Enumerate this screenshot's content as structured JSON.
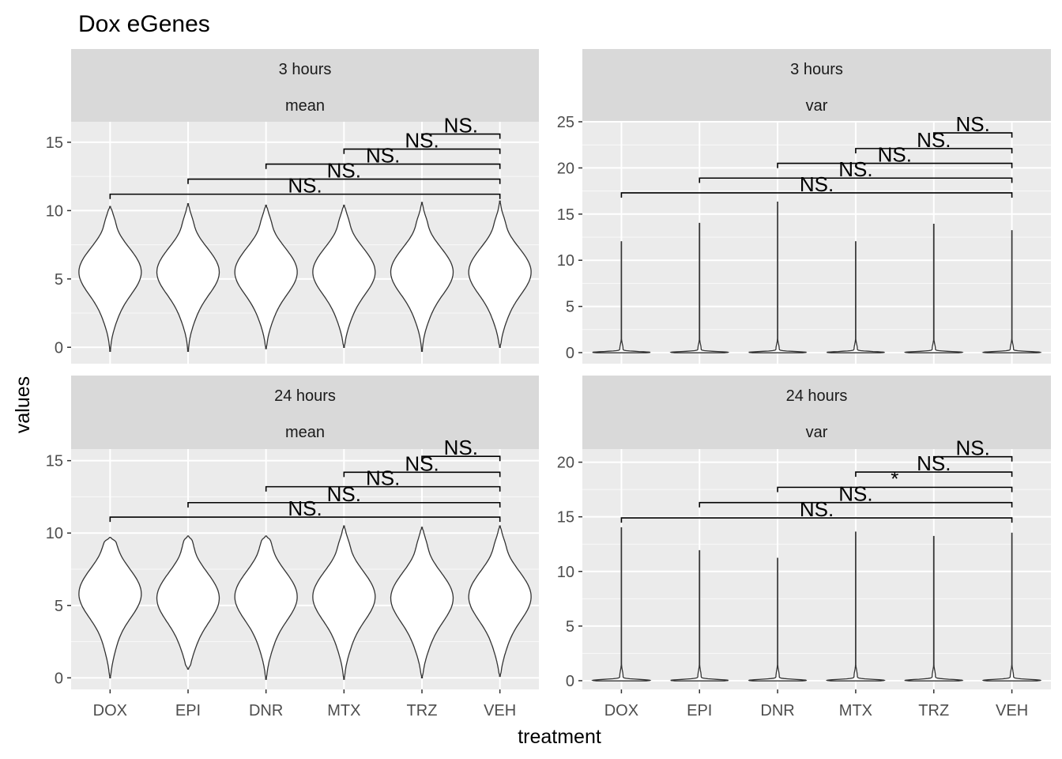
{
  "chart_data": {
    "type": "violin",
    "title": "Dox eGenes",
    "xlabel": "treatment",
    "ylabel": "values",
    "categories": [
      "DOX",
      "EPI",
      "DNR",
      "MTX",
      "TRZ",
      "VEH"
    ],
    "panels": [
      {
        "time": "3 hours",
        "stat": "mean",
        "ylim": [
          -1.2,
          16.5
        ],
        "yticks": [
          0,
          5,
          10,
          15
        ],
        "violins": [
          {
            "category": "DOX",
            "min": -0.3,
            "max": 10.3,
            "mode": 5.5
          },
          {
            "category": "EPI",
            "min": -0.3,
            "max": 10.5,
            "mode": 5.5
          },
          {
            "category": "DNR",
            "min": -0.1,
            "max": 10.4,
            "mode": 5.5
          },
          {
            "category": "MTX",
            "min": 0.0,
            "max": 10.4,
            "mode": 5.5
          },
          {
            "category": "TRZ",
            "min": -0.3,
            "max": 10.6,
            "mode": 5.5
          },
          {
            "category": "VEH",
            "min": 0.0,
            "max": 10.7,
            "mode": 5.5
          }
        ],
        "comparisons": [
          {
            "from": "DOX",
            "to": "VEH",
            "y": 11.2,
            "label": "NS."
          },
          {
            "from": "EPI",
            "to": "VEH",
            "y": 12.3,
            "label": "NS."
          },
          {
            "from": "DNR",
            "to": "VEH",
            "y": 13.4,
            "label": "NS."
          },
          {
            "from": "MTX",
            "to": "VEH",
            "y": 14.5,
            "label": "NS."
          },
          {
            "from": "TRZ",
            "to": "VEH",
            "y": 15.6,
            "label": "NS."
          }
        ]
      },
      {
        "time": "3 hours",
        "stat": "var",
        "ylim": [
          -1.2,
          25.0
        ],
        "yticks": [
          0,
          5,
          10,
          15,
          20,
          25
        ],
        "violins": [
          {
            "category": "DOX",
            "max": 12.0
          },
          {
            "category": "EPI",
            "max": 14.0
          },
          {
            "category": "DNR",
            "max": 16.3
          },
          {
            "category": "MTX",
            "max": 12.0
          },
          {
            "category": "TRZ",
            "max": 13.9
          },
          {
            "category": "VEH",
            "max": 13.2
          }
        ],
        "comparisons": [
          {
            "from": "DOX",
            "to": "VEH",
            "y": 17.3,
            "label": "NS."
          },
          {
            "from": "EPI",
            "to": "VEH",
            "y": 18.9,
            "label": "NS."
          },
          {
            "from": "DNR",
            "to": "VEH",
            "y": 20.5,
            "label": "NS."
          },
          {
            "from": "MTX",
            "to": "VEH",
            "y": 22.1,
            "label": "NS."
          },
          {
            "from": "TRZ",
            "to": "VEH",
            "y": 23.8,
            "label": "NS."
          }
        ]
      },
      {
        "time": "24 hours",
        "stat": "mean",
        "ylim": [
          -0.8,
          15.8
        ],
        "yticks": [
          0,
          5,
          10,
          15
        ],
        "violins": [
          {
            "category": "DOX",
            "min": 0.0,
            "max": 9.7,
            "mode": 5.8
          },
          {
            "category": "EPI",
            "min": 0.6,
            "max": 9.8,
            "mode": 5.5
          },
          {
            "category": "DNR",
            "min": -0.1,
            "max": 9.8,
            "mode": 5.6
          },
          {
            "category": "MTX",
            "min": -0.1,
            "max": 10.5,
            "mode": 5.6
          },
          {
            "category": "TRZ",
            "min": 0.0,
            "max": 10.4,
            "mode": 5.5
          },
          {
            "category": "VEH",
            "min": 0.1,
            "max": 10.5,
            "mode": 5.6
          }
        ],
        "comparisons": [
          {
            "from": "DOX",
            "to": "VEH",
            "y": 11.1,
            "label": "NS."
          },
          {
            "from": "EPI",
            "to": "VEH",
            "y": 12.1,
            "label": "NS."
          },
          {
            "from": "DNR",
            "to": "VEH",
            "y": 13.2,
            "label": "NS."
          },
          {
            "from": "MTX",
            "to": "VEH",
            "y": 14.2,
            "label": "NS."
          },
          {
            "from": "TRZ",
            "to": "VEH",
            "y": 15.3,
            "label": "NS."
          }
        ]
      },
      {
        "time": "24 hours",
        "stat": "var",
        "ylim": [
          -0.8,
          21.2
        ],
        "yticks": [
          0,
          5,
          10,
          15,
          20
        ],
        "violins": [
          {
            "category": "DOX",
            "max": 14.0
          },
          {
            "category": "EPI",
            "max": 11.9
          },
          {
            "category": "DNR",
            "max": 11.2
          },
          {
            "category": "MTX",
            "max": 13.6
          },
          {
            "category": "TRZ",
            "max": 13.2
          },
          {
            "category": "VEH",
            "max": 13.5
          }
        ],
        "comparisons": [
          {
            "from": "DOX",
            "to": "VEH",
            "y": 14.9,
            "label": "NS."
          },
          {
            "from": "EPI",
            "to": "VEH",
            "y": 16.3,
            "label": "NS."
          },
          {
            "from": "DNR",
            "to": "VEH",
            "y": 17.7,
            "label": "*"
          },
          {
            "from": "MTX",
            "to": "VEH",
            "y": 19.1,
            "label": "NS."
          },
          {
            "from": "TRZ",
            "to": "VEH",
            "y": 20.5,
            "label": "NS."
          }
        ]
      }
    ],
    "colors": {
      "panel_bg": "#ebebeb",
      "strip_bg": "#d9d9d9",
      "grid": "#ffffff",
      "violin_fill": "#ffffff",
      "violin_stroke": "#333333"
    }
  }
}
